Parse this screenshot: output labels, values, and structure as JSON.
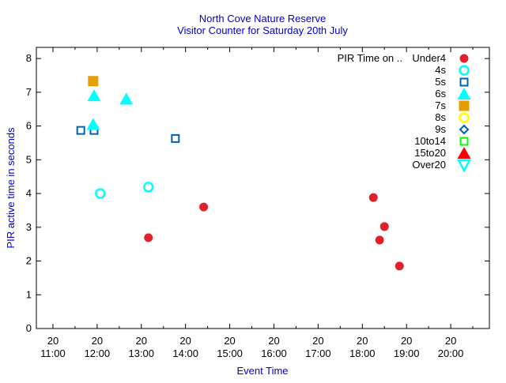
{
  "chart_data": {
    "type": "scatter",
    "title": "North Cove Nature Reserve",
    "subtitle": "Visitor Counter for Saturday 20th July",
    "xlabel": "Event Time",
    "ylabel": "PIR active time in seconds",
    "xlim_hours": [
      10.625,
      20.875
    ],
    "ylim": [
      0,
      8.33
    ],
    "yticks": [
      0,
      1,
      2,
      3,
      4,
      5,
      6,
      7,
      8
    ],
    "xticks": [
      {
        "h": 11,
        "day": "20",
        "time": "11:00"
      },
      {
        "h": 12,
        "day": "20",
        "time": "12:00"
      },
      {
        "h": 13,
        "day": "20",
        "time": "13:00"
      },
      {
        "h": 14,
        "day": "20",
        "time": "14:00"
      },
      {
        "h": 15,
        "day": "20",
        "time": "15:00"
      },
      {
        "h": 16,
        "day": "20",
        "time": "16:00"
      },
      {
        "h": 17,
        "day": "20",
        "time": "17:00"
      },
      {
        "h": 18,
        "day": "20",
        "time": "18:00"
      },
      {
        "h": 19,
        "day": "20",
        "time": "19:00"
      },
      {
        "h": 20,
        "day": "20",
        "time": "20:00"
      }
    ],
    "legend_title": "PIR Time on ..",
    "legend_position": "top-right",
    "series": [
      {
        "name": "Under4",
        "marker": "circle-filled",
        "color": "#e0202a",
        "points": [
          [
            13.16,
            2.69
          ],
          [
            14.41,
            3.6
          ],
          [
            18.25,
            3.88
          ],
          [
            18.5,
            3.02
          ],
          [
            18.39,
            2.62
          ],
          [
            18.84,
            1.85
          ]
        ]
      },
      {
        "name": "4s",
        "marker": "circle-open",
        "color": "#00ffff",
        "points": [
          [
            12.07,
            4.0
          ],
          [
            13.16,
            4.19
          ]
        ]
      },
      {
        "name": "5s",
        "marker": "square-open",
        "color": "#0060ad",
        "points": [
          [
            11.63,
            5.87
          ],
          [
            11.93,
            5.87
          ],
          [
            13.77,
            5.63
          ]
        ]
      },
      {
        "name": "6s",
        "marker": "triangle-filled",
        "color": "#00ffff",
        "points": [
          [
            11.93,
            6.9
          ],
          [
            12.66,
            6.8
          ],
          [
            11.91,
            6.05
          ]
        ]
      },
      {
        "name": "7s",
        "marker": "square-filled",
        "color": "#e69f00",
        "points": [
          [
            11.91,
            7.33
          ]
        ]
      },
      {
        "name": "8s",
        "marker": "circle-open",
        "color": "#ffff00",
        "points": []
      },
      {
        "name": "9s",
        "marker": "diamond-open",
        "color": "#0060ad",
        "points": []
      },
      {
        "name": "10to14",
        "marker": "square-open",
        "color": "#00ff00",
        "points": []
      },
      {
        "name": "15to20",
        "marker": "triangle-filled",
        "color": "#ff0000",
        "points": []
      },
      {
        "name": "Over20",
        "marker": "triangle-down-open",
        "color": "#00ffff",
        "points": []
      }
    ],
    "title_color": "#0000cc",
    "label_color": "#0000cc"
  }
}
